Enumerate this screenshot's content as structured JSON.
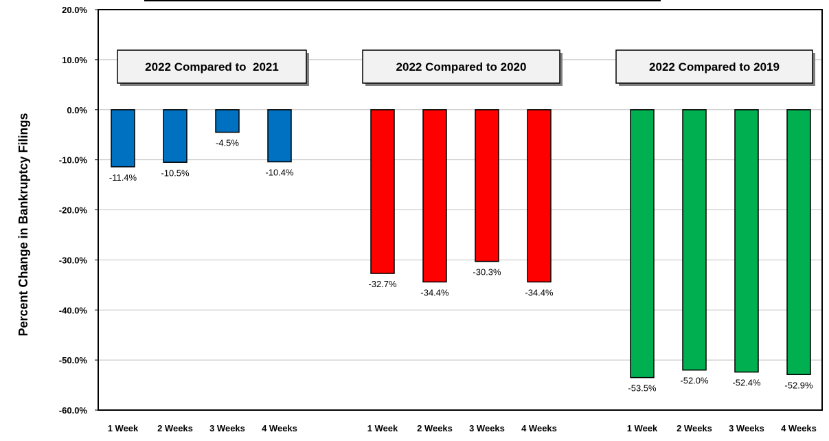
{
  "chart_data": {
    "type": "bar",
    "ylabel": "Percent Change in Bankruptcy Filings",
    "ylim": [
      -60,
      20
    ],
    "yticks": [
      "20.0%",
      "10.0%",
      "0.0%",
      "-10.0%",
      "-20.0%",
      "-30.0%",
      "-40.0%",
      "-50.0%",
      "-60.0%"
    ],
    "grid": true,
    "groups": [
      {
        "title": "2022 Compared to  2021",
        "color": "#0070c0",
        "categories": [
          "1 Week",
          "2 Weeks",
          "3 Weeks",
          "4 Weeks"
        ],
        "values": [
          -11.4,
          -10.5,
          -4.5,
          -10.4
        ],
        "labels": [
          "-11.4%",
          "-10.5%",
          "-4.5%",
          "-10.4%"
        ]
      },
      {
        "title": "2022 Compared to 2020",
        "color": "#ff0000",
        "categories": [
          "1 Week",
          "2 Weeks",
          "3 Weeks",
          "4 Weeks"
        ],
        "values": [
          -32.7,
          -34.4,
          -30.3,
          -34.4
        ],
        "labels": [
          "-32.7%",
          "-34.4%",
          "-30.3%",
          "-34.4%"
        ]
      },
      {
        "title": "2022 Compared to 2019",
        "color": "#00b050",
        "categories": [
          "1 Week",
          "2 Weeks",
          "3 Weeks",
          "4 Weeks"
        ],
        "values": [
          -53.5,
          -52.0,
          -52.4,
          -52.9
        ],
        "labels": [
          "-53.5%",
          "-52.0%",
          "-52.4%",
          "-52.9%"
        ]
      }
    ]
  }
}
